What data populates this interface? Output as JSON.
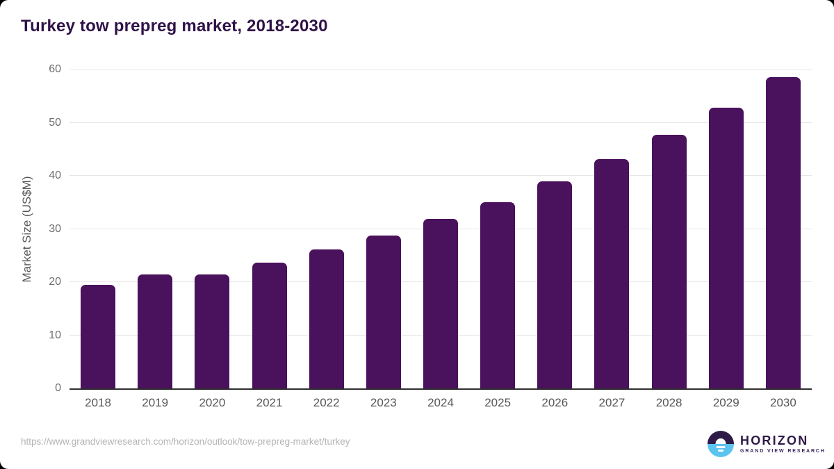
{
  "chart_data": {
    "type": "bar",
    "title": "Turkey tow prepreg market, 2018-2030",
    "categories": [
      "2018",
      "2019",
      "2020",
      "2021",
      "2022",
      "2023",
      "2024",
      "2025",
      "2026",
      "2027",
      "2028",
      "2029",
      "2030"
    ],
    "values": [
      19.5,
      21.5,
      21.4,
      23.6,
      26.1,
      28.7,
      31.9,
      35.1,
      38.9,
      43.1,
      47.7,
      52.8,
      58.6
    ],
    "xlabel": "",
    "ylabel": "Market Size (US$M)",
    "ylim": [
      0,
      60
    ],
    "yticks": [
      0,
      10,
      20,
      30,
      40,
      50,
      60
    ],
    "grid": "horizontal-only",
    "legend": "none",
    "bar_color": "#4a115c"
  },
  "colors": {
    "title_text": "#2f1248",
    "bar": "#4a115c",
    "gridline": "#e6e6e6",
    "axis_line": "#2e2e2e",
    "tick_text": "#6e6e6e",
    "category_text": "#575757",
    "url_text": "#b4b4b4",
    "logo_dark_purple": "#2e1a47",
    "logo_light_blue": "#5cc3ef"
  },
  "footer": {
    "url": "https://www.grandviewresearch.com/horizon/outlook/tow-prepreg-market/turkey",
    "logo": {
      "title": "HORIZON",
      "subtitle": "GRAND VIEW RESEARCH"
    }
  }
}
